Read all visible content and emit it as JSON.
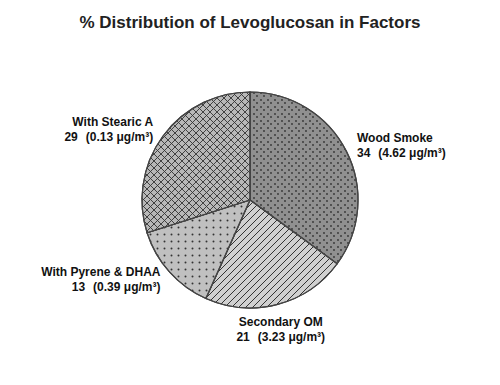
{
  "chart_data": {
    "type": "pie",
    "title": "% Distribution of Levoglucosan in Factors",
    "categories": [
      "Wood Smoke",
      "Secondary OM",
      "With Pyrene & DHAA",
      "With Stearic A"
    ],
    "values": [
      34,
      21,
      13,
      29
    ],
    "colors": [
      "#909090",
      "#d0d0d0",
      "#c0c0c0",
      "#b8b8b8"
    ],
    "annotations": [
      "(4.62 μg/m³)",
      "(3.23 μg/m³)",
      "(0.39 μg/m³)",
      "(0.13 μg/m³)"
    ],
    "data_labels": true
  }
}
